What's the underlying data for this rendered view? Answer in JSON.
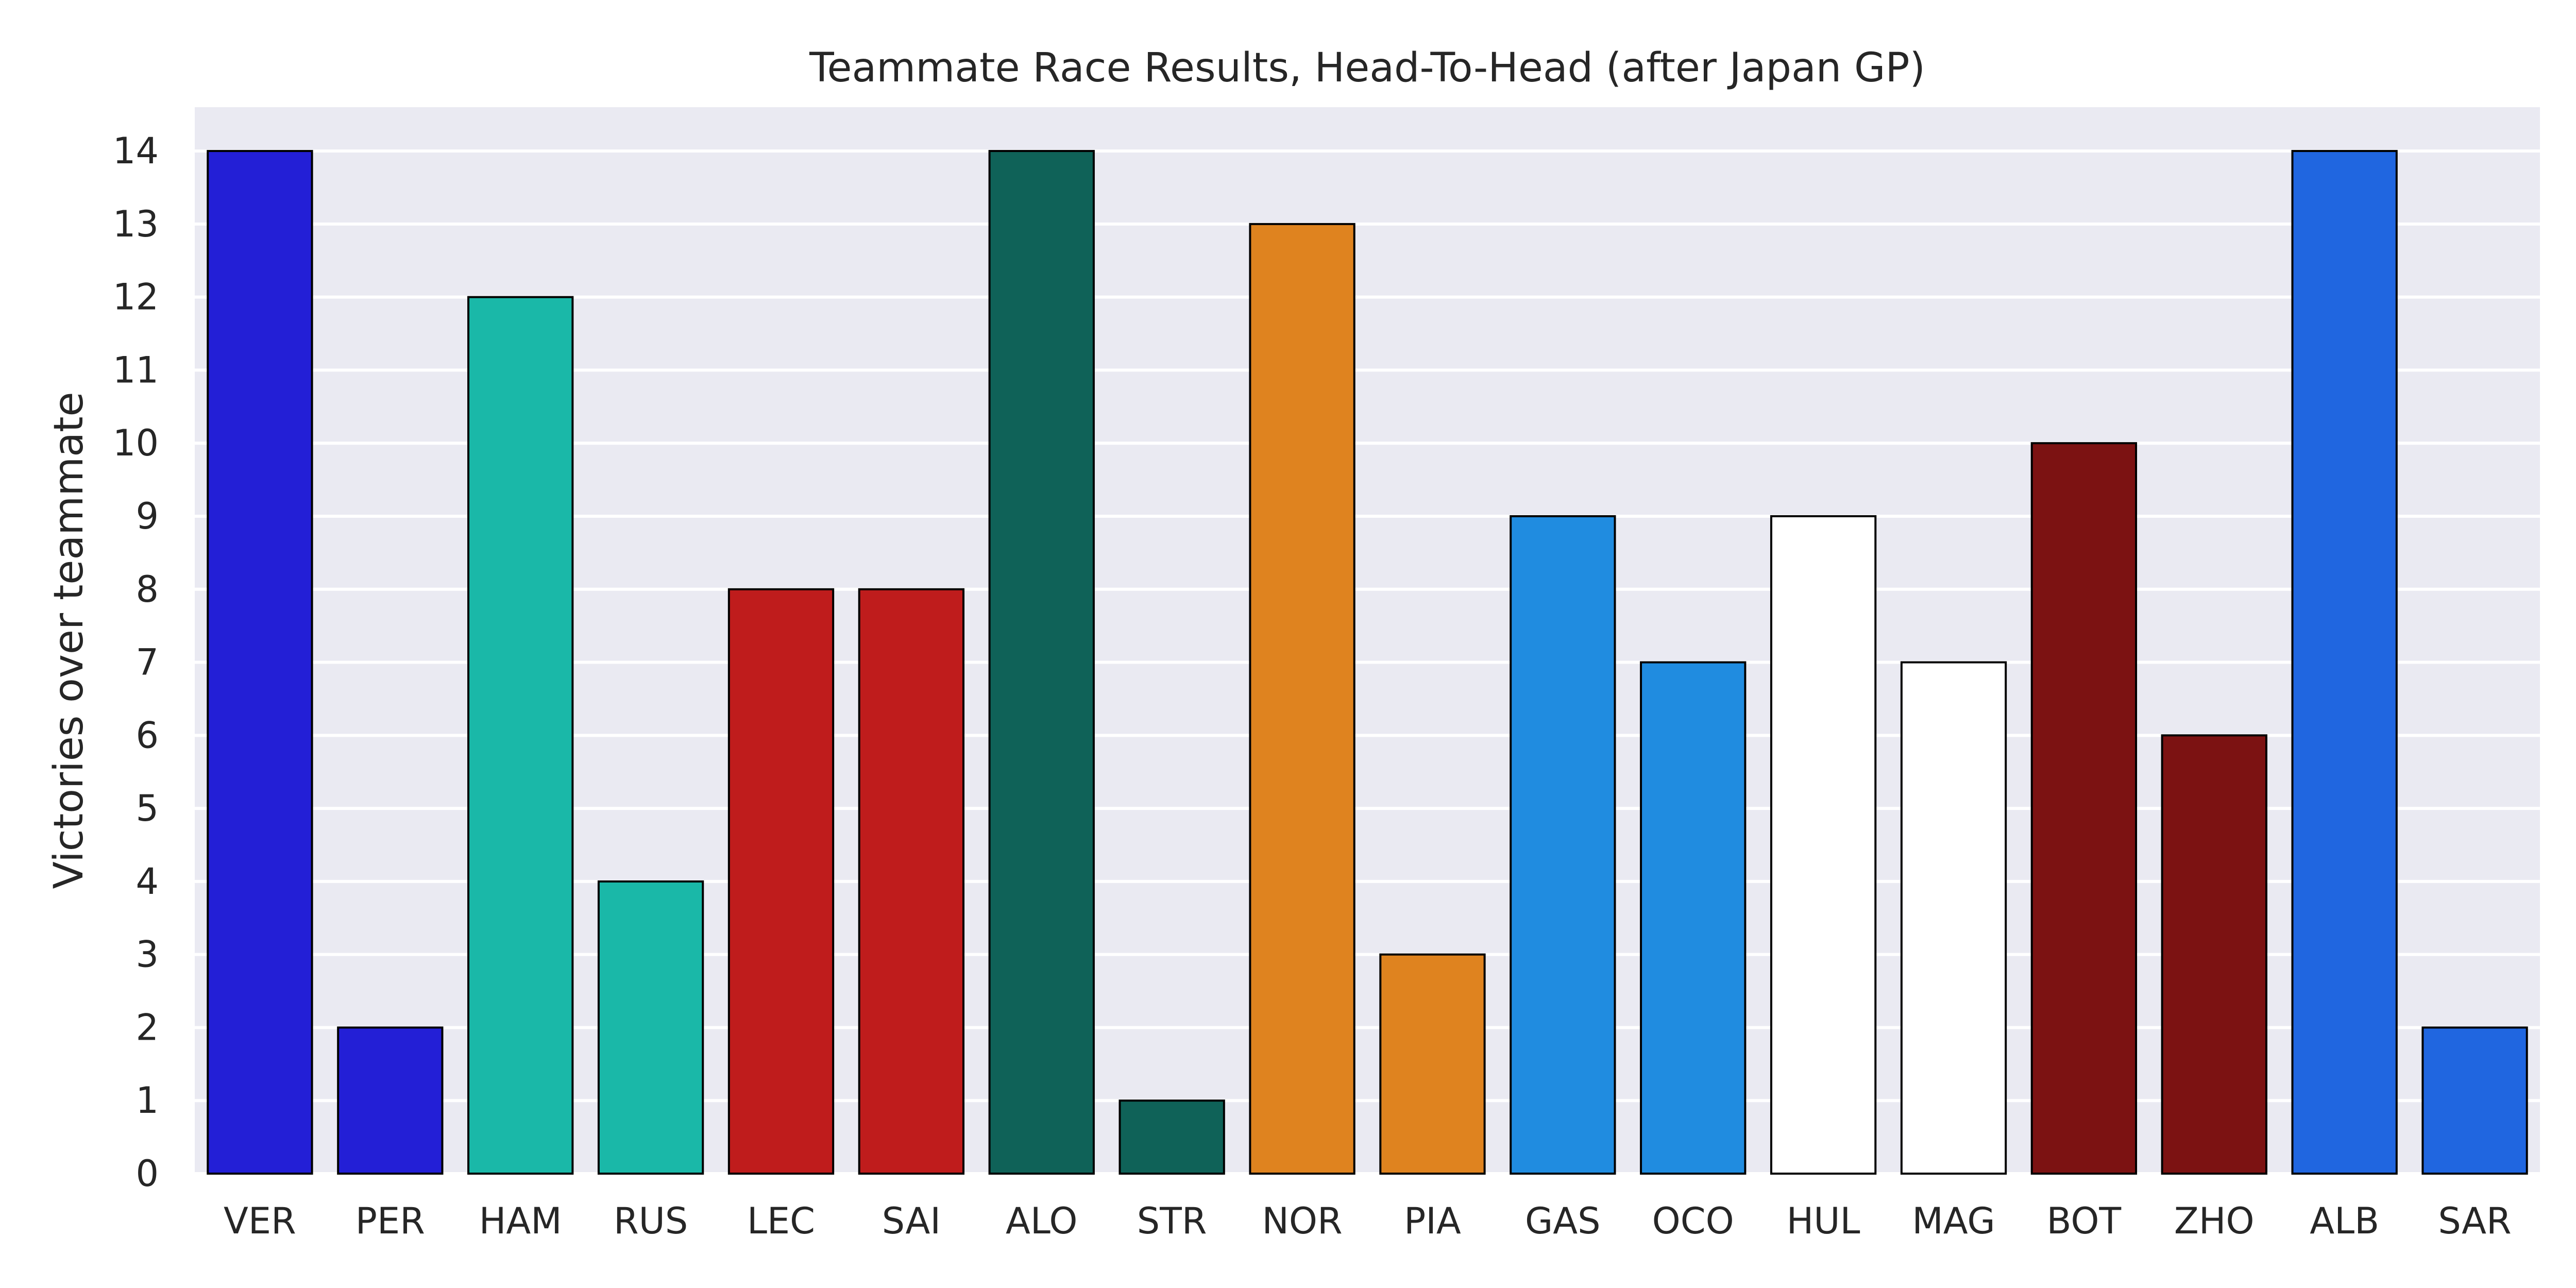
{
  "chart_data": {
    "type": "bar",
    "title": "Teammate Race Results, Head-To-Head (after Japan GP)",
    "xlabel": "",
    "ylabel": "Victories over teammate",
    "ylim": [
      0,
      14.6
    ],
    "yticks": [
      0,
      1,
      2,
      3,
      4,
      5,
      6,
      7,
      8,
      9,
      10,
      11,
      12,
      13,
      14
    ],
    "grid": true,
    "plot_background": "#eaeaf2",
    "grid_color": "#ffffff",
    "bar_edge_color": "#000000",
    "categories": [
      "VER",
      "PER",
      "HAM",
      "RUS",
      "LEC",
      "SAI",
      "ALO",
      "STR",
      "NOR",
      "PIA",
      "GAS",
      "OCO",
      "HUL",
      "MAG",
      "BOT",
      "ZHO",
      "ALB",
      "SAR"
    ],
    "values": [
      14,
      2,
      12,
      4,
      8,
      8,
      14,
      1,
      13,
      3,
      9,
      7,
      9,
      7,
      10,
      6,
      14,
      2
    ],
    "colors": [
      "#231fd6",
      "#231fd6",
      "#1ab8a8",
      "#1ab8a8",
      "#bf1c1c",
      "#bf1c1c",
      "#0f6258",
      "#0f6258",
      "#df831f",
      "#df831f",
      "#208ce0",
      "#208ce0",
      "#ffffff",
      "#ffffff",
      "#7c1212",
      "#7c1212",
      "#2066e0",
      "#2066e0"
    ]
  }
}
